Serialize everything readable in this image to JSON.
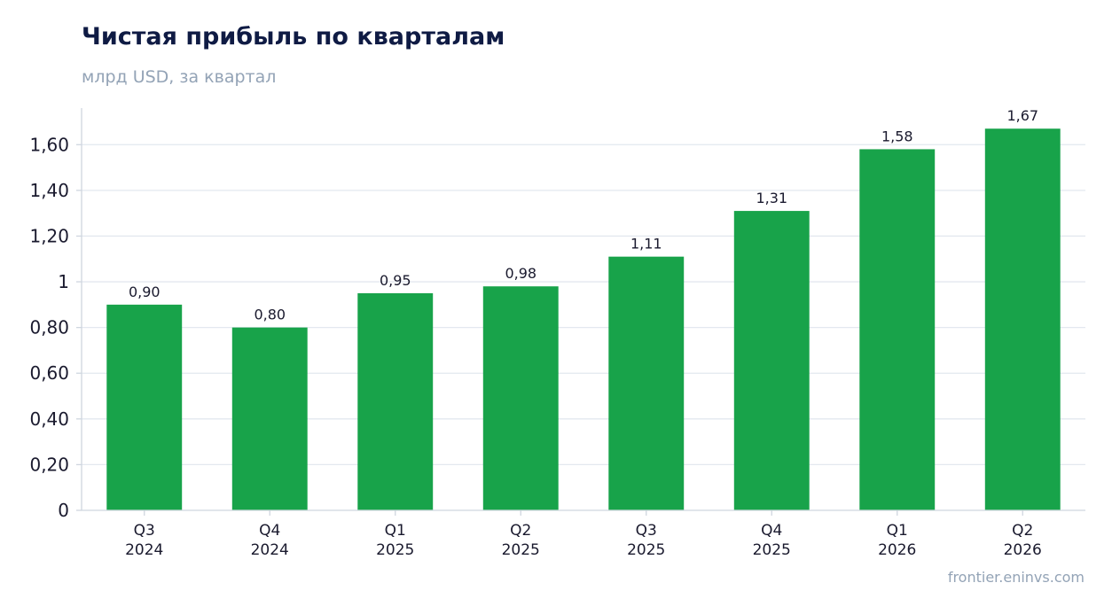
{
  "header": {
    "title": "Чистая прибыль по кварталам",
    "subtitle": "млрд USD, за квартал"
  },
  "footer": {
    "source": "frontier.eninvs.com"
  },
  "colors": {
    "bar": "#18a34a",
    "title": "#0f1b44",
    "muted": "#93a3b6",
    "grid": "#e3e8ef",
    "axis": "#cfd6df",
    "text": "#1a1a2e"
  },
  "chart_data": {
    "type": "bar",
    "title": "Чистая прибыль по кварталам",
    "subtitle": "млрд USD, за квартал",
    "categories": [
      [
        "Q3",
        "2024"
      ],
      [
        "Q4",
        "2024"
      ],
      [
        "Q1",
        "2025"
      ],
      [
        "Q2",
        "2025"
      ],
      [
        "Q3",
        "2025"
      ],
      [
        "Q4",
        "2025"
      ],
      [
        "Q1",
        "2026"
      ],
      [
        "Q2",
        "2026"
      ]
    ],
    "values": [
      0.9,
      0.8,
      0.95,
      0.98,
      1.11,
      1.31,
      1.58,
      1.67
    ],
    "value_labels": [
      "0,90",
      "0,80",
      "0,95",
      "0,98",
      "1,11",
      "1,31",
      "1,58",
      "1,67"
    ],
    "yticks": [
      0,
      0.2,
      0.4,
      0.6,
      0.8,
      1.0,
      1.2,
      1.4,
      1.6
    ],
    "ytick_labels": [
      "0",
      "0,20",
      "0,40",
      "0,60",
      "0,80",
      "1",
      "1,20",
      "1,40",
      "1,60"
    ],
    "ylim": [
      0,
      1.76
    ],
    "grid": true,
    "xlabel": "",
    "ylabel": ""
  }
}
